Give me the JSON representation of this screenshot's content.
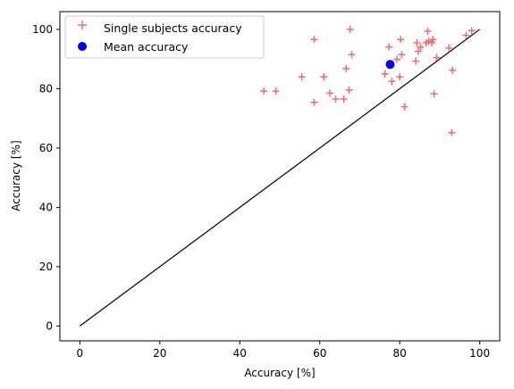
{
  "chart_data": {
    "type": "scatter",
    "xlabel": "Accuracy [%]",
    "ylabel": "Accuracy [%]",
    "xlim": [
      -5,
      105
    ],
    "ylim": [
      -5,
      106
    ],
    "xticks": [
      0,
      20,
      40,
      60,
      80,
      100
    ],
    "yticks": [
      0,
      20,
      40,
      60,
      80,
      100
    ],
    "grid": false,
    "legend_position": "top-left",
    "reference_line": {
      "x": [
        0,
        100
      ],
      "y": [
        0,
        100
      ],
      "color": "#000000"
    },
    "series": [
      {
        "name": "Single subjects accuracy",
        "marker": "plus",
        "color": "#f26b6b",
        "points": [
          [
            46,
            79.2
          ],
          [
            49,
            79.2
          ],
          [
            55.5,
            84
          ],
          [
            58.6,
            96.6
          ],
          [
            58.6,
            75.4
          ],
          [
            61,
            84
          ],
          [
            62.5,
            78.5
          ],
          [
            64,
            76.5
          ],
          [
            66,
            76.5
          ],
          [
            66.6,
            86.8
          ],
          [
            67.3,
            79.6
          ],
          [
            67.6,
            100
          ],
          [
            68,
            91.5
          ],
          [
            76.3,
            85
          ],
          [
            77.3,
            94.1
          ],
          [
            78,
            82.5
          ],
          [
            79.3,
            89.9
          ],
          [
            80,
            84
          ],
          [
            80.2,
            96.6
          ],
          [
            80.5,
            91.5
          ],
          [
            81.2,
            73.9
          ],
          [
            84,
            89.3
          ],
          [
            84.3,
            95.5
          ],
          [
            84.6,
            92.6
          ],
          [
            85.2,
            94
          ],
          [
            86.6,
            95.5
          ],
          [
            87,
            99.4
          ],
          [
            87.2,
            96
          ],
          [
            88,
            95.5
          ],
          [
            88.3,
            96.6
          ],
          [
            88.6,
            78.3
          ],
          [
            89.2,
            90.5
          ],
          [
            92.3,
            93.7
          ],
          [
            93,
            65.2
          ],
          [
            93.2,
            86.2
          ],
          [
            96.6,
            98
          ],
          [
            98,
            99.6
          ]
        ]
      },
      {
        "name": "Mean accuracy",
        "marker": "circle",
        "color": "#0000ee",
        "points": [
          [
            77.6,
            88.2
          ]
        ]
      }
    ]
  }
}
